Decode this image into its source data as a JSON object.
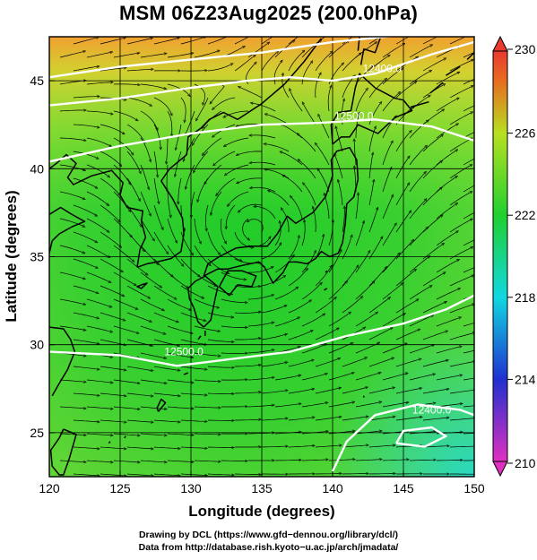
{
  "title": "MSM 06Z23Aug2025 (200.0hPa)",
  "x_axis": {
    "label": "Longitude (degrees)",
    "ticks": [
      "120",
      "125",
      "130",
      "135",
      "140",
      "145",
      "150"
    ],
    "range": [
      120,
      150
    ]
  },
  "y_axis": {
    "label": "Latitude  (degrees)",
    "ticks": [
      "25",
      "30",
      "35",
      "40",
      "45"
    ],
    "range": [
      22.5,
      47.5
    ]
  },
  "colorbar": {
    "ticks": [
      "210",
      "214",
      "218",
      "222",
      "226",
      "230"
    ],
    "range": [
      210,
      230
    ],
    "colors": [
      "#e030c0",
      "#2030d0",
      "#10d8e0",
      "#20d030",
      "#b8e020",
      "#e86a20",
      "#e83a30"
    ]
  },
  "contour_labels": [
    {
      "text": "12400.0",
      "lon": 143.5,
      "lat": 45.5
    },
    {
      "text": "12500.0",
      "lon": 141.5,
      "lat": 42.8
    },
    {
      "text": "12500.0",
      "lon": 129.5,
      "lat": 29.4
    },
    {
      "text": "12400.0",
      "lon": 147,
      "lat": 26.1
    }
  ],
  "low_center": {
    "lon": 134.5,
    "lat": 36.6
  },
  "credits": {
    "line1": "Drawing by DCL (https://www.gfd−dennou.org/library/dcl/)",
    "line2": "Data from http://database.rish.kyoto−u.ac.jp/arch/jmadata/"
  }
}
